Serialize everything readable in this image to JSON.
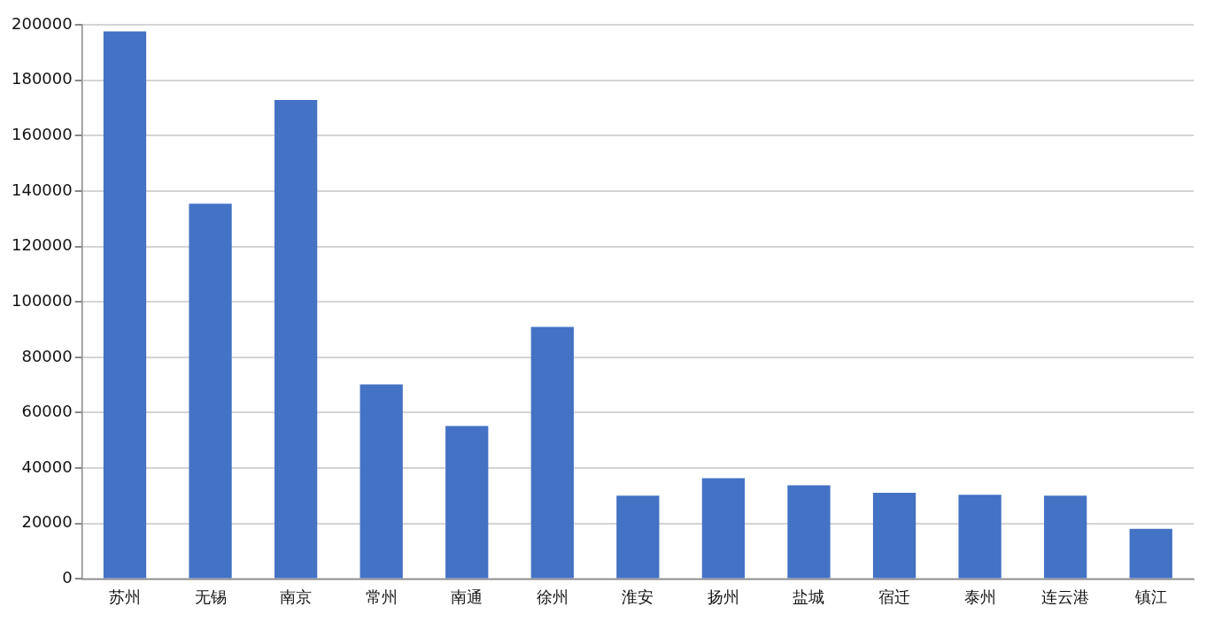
{
  "chart_data": {
    "type": "bar",
    "categories": [
      "苏州",
      "无锡",
      "南京",
      "常州",
      "南通",
      "徐州",
      "淮安",
      "扬州",
      "盐城",
      "宿迁",
      "泰州",
      "连云港",
      "镇江"
    ],
    "values": [
      197600,
      135400,
      172900,
      70200,
      55200,
      91000,
      30100,
      36400,
      33800,
      31100,
      30400,
      30100,
      18100
    ],
    "color": "#4472c4",
    "ylim": [
      0,
      200000
    ],
    "yticks": [
      0,
      20000,
      40000,
      60000,
      80000,
      100000,
      120000,
      140000,
      160000,
      180000,
      200000
    ],
    "grid": "y",
    "legend": false
  }
}
